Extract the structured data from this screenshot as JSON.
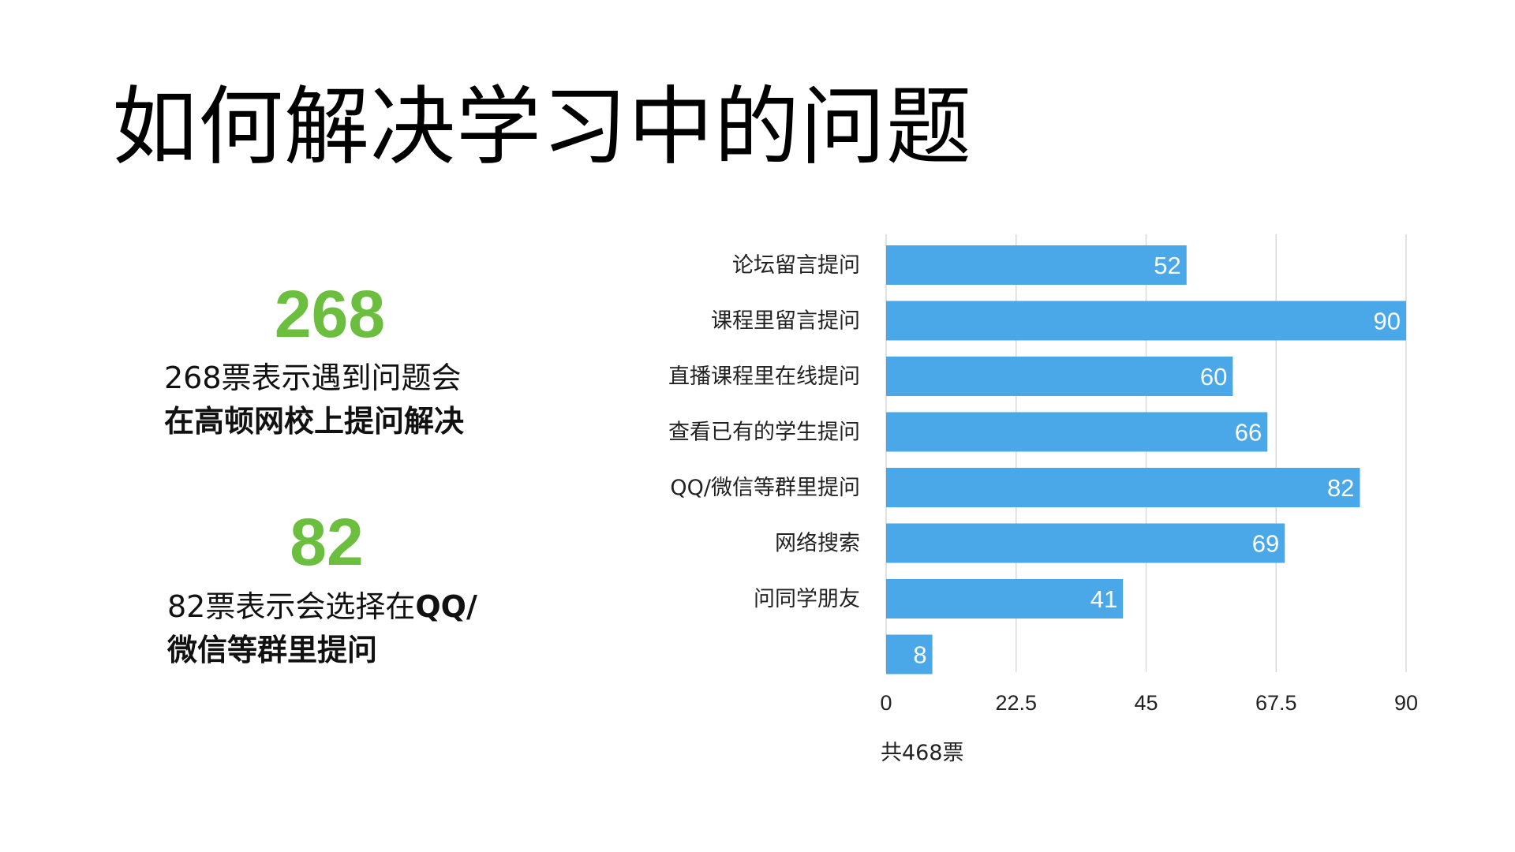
{
  "title": "如何解决学习中的问题",
  "stat1": {
    "number": "268",
    "line1": "268票表示遇到问题会",
    "line2": "在高顿网校上提问解决"
  },
  "stat2": {
    "number": "82",
    "line1_prefix": "82票表示会选择在",
    "line1_bold": "QQ/",
    "line2": "微信等群里提问"
  },
  "colors": {
    "bar": "#4aa7e8",
    "accent_number": "#6cbf3e",
    "grid": "#d9d9d9"
  },
  "chart_data": {
    "type": "bar",
    "orientation": "horizontal",
    "categories": [
      "论坛留言提问",
      "课程里留言提问",
      "直播课程里在线提问",
      "查看已有的学生提问",
      "QQ/微信等群里提问",
      "网络搜索",
      "问同学朋友",
      ""
    ],
    "values": [
      52,
      90,
      60,
      66,
      82,
      69,
      41,
      8
    ],
    "xlim": [
      0,
      90
    ],
    "xticks": [
      "0",
      "22.5",
      "45",
      "67.5",
      "90"
    ],
    "xlabel": "共468票",
    "data_labels": true,
    "grid": true
  }
}
